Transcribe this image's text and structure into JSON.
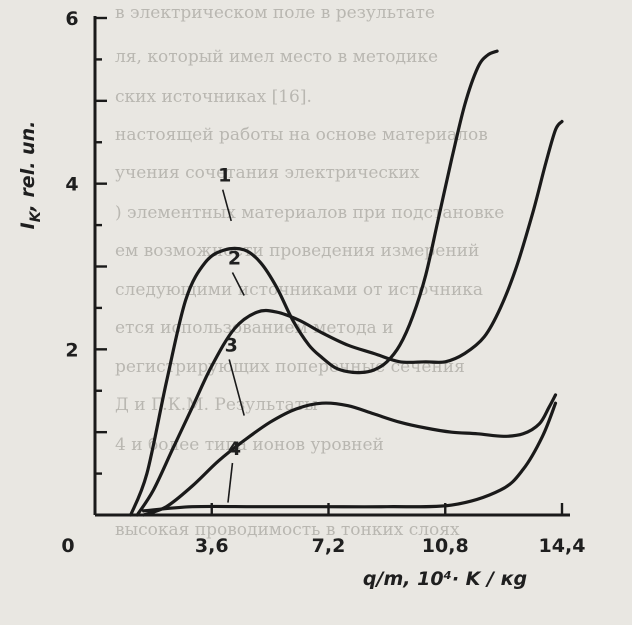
{
  "chart_data": {
    "type": "line",
    "xlabel": "q/m, 10⁴· K / кg",
    "ylabel": "I_K, rel. un.",
    "ylabel_main": "I",
    "ylabel_sub": "K",
    "ylabel_rest": ", rel. un.",
    "xlim": [
      0,
      14.4
    ],
    "ylim": [
      0,
      6
    ],
    "x_ticks": [
      0,
      3.6,
      7.2,
      10.8,
      14.4
    ],
    "x_tick_labels": [
      "0",
      "3,6",
      "7,2",
      "10,8",
      "14,4"
    ],
    "y_ticks": [
      2,
      4,
      6
    ],
    "y_tick_labels": [
      "2",
      "4",
      "6"
    ],
    "series": [
      {
        "name": "1",
        "x": [
          1.1,
          1.6,
          2.2,
          2.8,
          3.4,
          4.0,
          4.6,
          5.1,
          5.6,
          6.1,
          6.6,
          7.0,
          7.4,
          7.8,
          8.2,
          8.6,
          9.0,
          9.4,
          9.8,
          10.2,
          10.6,
          11.0,
          11.4,
          11.8,
          12.1,
          12.4
        ],
        "y": [
          0.0,
          0.5,
          1.6,
          2.6,
          3.05,
          3.2,
          3.2,
          3.05,
          2.75,
          2.35,
          2.05,
          1.9,
          1.78,
          1.73,
          1.72,
          1.75,
          1.85,
          2.05,
          2.4,
          2.9,
          3.6,
          4.3,
          4.95,
          5.4,
          5.55,
          5.6
        ]
      },
      {
        "name": "2",
        "x": [
          1.3,
          1.8,
          2.4,
          3.0,
          3.6,
          4.3,
          5.0,
          5.6,
          6.3,
          7.0,
          7.8,
          8.6,
          9.4,
          10.2,
          10.8,
          11.4,
          12.0,
          12.5,
          13.0,
          13.5,
          13.9,
          14.2,
          14.4
        ],
        "y": [
          0.0,
          0.3,
          0.8,
          1.3,
          1.8,
          2.25,
          2.45,
          2.45,
          2.35,
          2.2,
          2.05,
          1.95,
          1.85,
          1.85,
          1.85,
          1.95,
          2.15,
          2.5,
          3.0,
          3.65,
          4.25,
          4.65,
          4.75
        ]
      },
      {
        "name": "3",
        "x": [
          1.5,
          2.2,
          3.0,
          3.8,
          4.6,
          5.4,
          6.2,
          7.0,
          7.8,
          8.6,
          9.4,
          10.2,
          11.0,
          11.8,
          12.6,
          13.2,
          13.7,
          14.0,
          14.2
        ],
        "y": [
          0.0,
          0.1,
          0.35,
          0.65,
          0.9,
          1.12,
          1.28,
          1.35,
          1.32,
          1.22,
          1.12,
          1.05,
          1.0,
          0.98,
          0.95,
          0.98,
          1.1,
          1.3,
          1.45
        ]
      },
      {
        "name": "4",
        "x": [
          1.5,
          3.0,
          5.0,
          7.0,
          9.0,
          11.0,
          12.5,
          13.2,
          13.8,
          14.2
        ],
        "y": [
          0.05,
          0.1,
          0.1,
          0.1,
          0.1,
          0.12,
          0.3,
          0.55,
          0.95,
          1.35
        ]
      }
    ],
    "curve_labels": [
      {
        "text": "1",
        "x": 4.0,
        "y": 4.0,
        "lx": 4.2,
        "ly": 3.55
      },
      {
        "text": "2",
        "x": 4.3,
        "y": 3.0,
        "lx": 4.6,
        "ly": 2.65
      },
      {
        "text": "3",
        "x": 4.2,
        "y": 1.95,
        "lx": 4.6,
        "ly": 1.2
      },
      {
        "text": "4",
        "x": 4.3,
        "y": 0.7,
        "lx": 4.1,
        "ly": 0.15
      }
    ],
    "grid": false,
    "legend": "none"
  },
  "background_text": [
    "в электрическом поле в результате",
    "ля, который имел место в методике",
    "ских источниках [16].",
    "настоящей работы на основе материалов",
    "учения сочетания электрических",
    ") элементных материалов при подстановке",
    "ем возможности проведения измерений",
    "следующими источниками от источника",
    "ется использованием метода и",
    "регистрирующих поперечные сечения",
    "Д и Г.К.М. Результаты",
    "4 и более типа ионов уровней",
    "высокая проводимость в тонких слоях"
  ]
}
